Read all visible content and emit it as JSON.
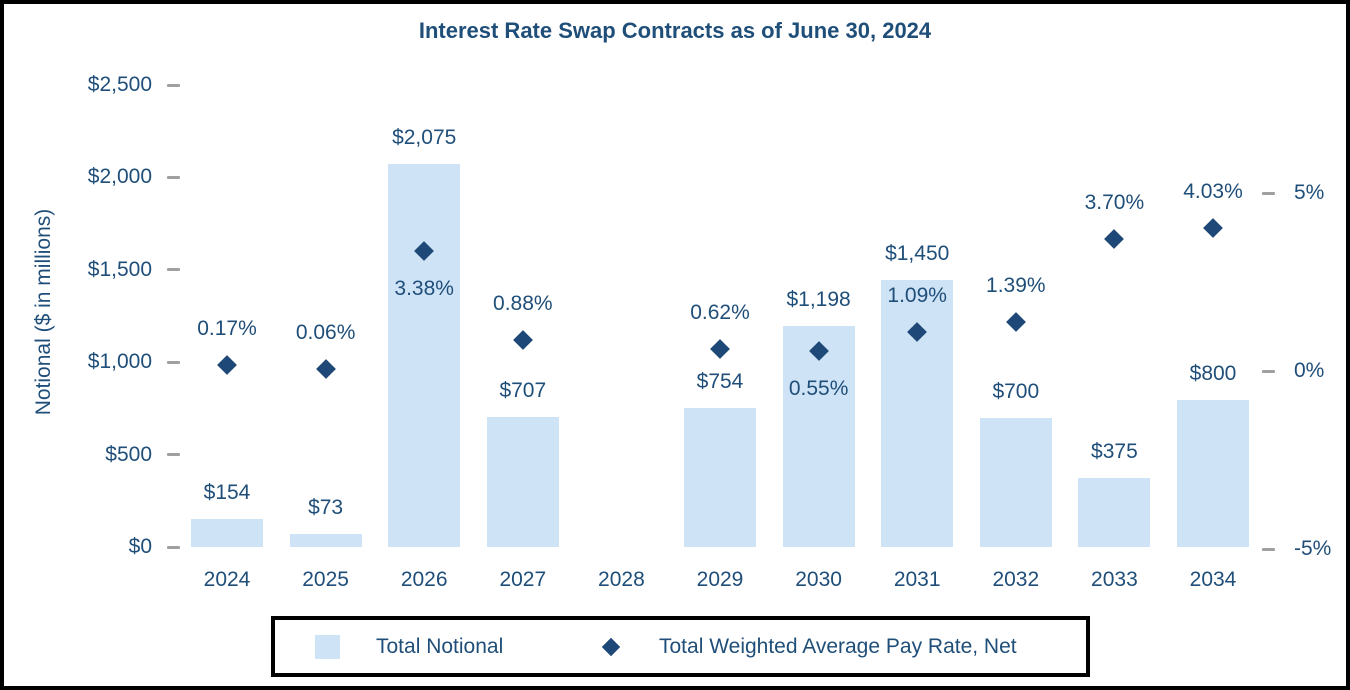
{
  "title": "Interest Rate Swap Contracts as of June 30, 2024",
  "left_axis": {
    "label": "Notional ($ in millions)",
    "ticks": [
      "$2,500",
      "$2,000",
      "$1,500",
      "$1,000",
      "$500",
      "$0"
    ]
  },
  "right_axis": {
    "ticks": [
      "5%",
      "0%",
      "-5%"
    ]
  },
  "legend": {
    "notional_label": "Total Notional",
    "rate_label": "Total Weighted Average Pay Rate, Net"
  },
  "colors": {
    "bar_fill": "#CFE3F7",
    "diamond": "#1E4878",
    "text": "#1F4E79",
    "tick": "#A0A0A0",
    "border": "#000000"
  },
  "chart_data": {
    "type": "bar",
    "subtype": "combo bar + scatter (diamond markers, secondary right axis)",
    "title": "Interest Rate Swap Contracts as of June 30, 2024",
    "categories": [
      "2024",
      "2025",
      "2026",
      "2027",
      "2028",
      "2029",
      "2030",
      "2031",
      "2032",
      "2033",
      "2034"
    ],
    "series": [
      {
        "name": "Total Notional",
        "type": "bar",
        "axis": "left",
        "values": [
          154,
          73,
          2075,
          707,
          null,
          754,
          1198,
          1450,
          700,
          375,
          800
        ],
        "data_labels": [
          "$154",
          "$73",
          "$2,075",
          "$707",
          null,
          "$754",
          "$1,198",
          "$1,450",
          "$700",
          "$375",
          "$800"
        ]
      },
      {
        "name": "Total Weighted Average Pay Rate, Net",
        "type": "scatter",
        "marker": "diamond",
        "axis": "right",
        "values": [
          0.17,
          0.06,
          3.38,
          0.88,
          null,
          0.62,
          0.55,
          1.09,
          1.39,
          3.7,
          4.03
        ],
        "data_labels": [
          "0.17%",
          "0.06%",
          "3.38%",
          "0.88%",
          null,
          "0.62%",
          "0.55%",
          "1.09%",
          "1.39%",
          "3.70%",
          "4.03%"
        ],
        "label_positions": [
          "above",
          "above",
          "below",
          "above",
          null,
          "above",
          "below",
          "above",
          "above",
          "above",
          "above"
        ]
      }
    ],
    "xlabel": "",
    "ylabel_left": "Notional ($ in millions)",
    "ylabel_right": "",
    "left_ylim": [
      0,
      2500
    ],
    "left_tick_step": 500,
    "right_ylim": [
      -5,
      5
    ],
    "right_tick_step": 5,
    "grid": false,
    "legend_position": "bottom"
  }
}
